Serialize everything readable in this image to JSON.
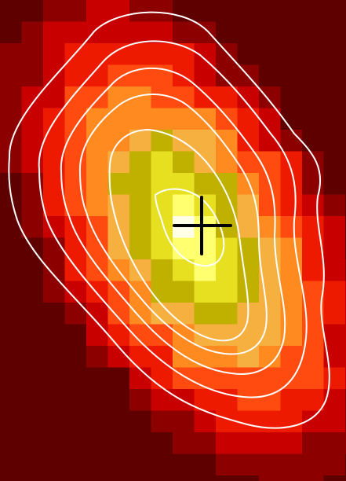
{
  "image": {
    "kind": "pixelated false-color intensity map with white contour lines",
    "colormap": [
      "#5e0000",
      "#8c0000",
      "#c80000",
      "#ee1a00",
      "#ff4a10",
      "#ff8a20",
      "#f6b040",
      "#c0b000",
      "#e6e020",
      "#ffff70",
      "#ffffe8"
    ],
    "contour_color": "#ffffff",
    "marker": {
      "name": "plus-marker",
      "color": "#000000"
    }
  }
}
